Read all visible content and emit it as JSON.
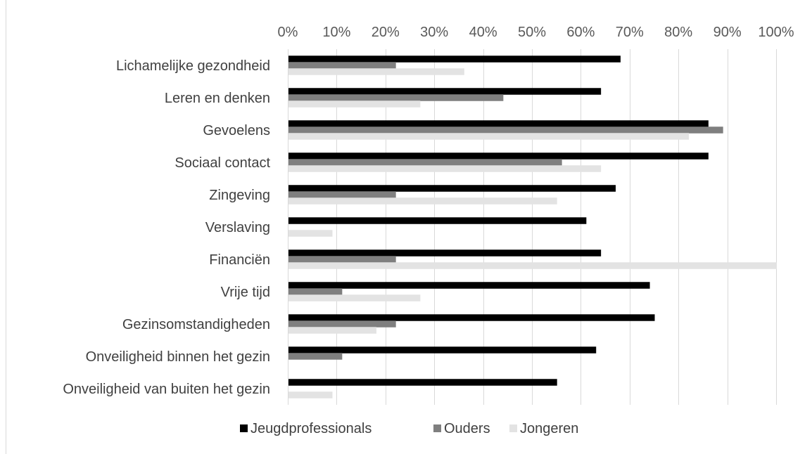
{
  "chart_data": {
    "type": "bar",
    "orientation": "horizontal",
    "categories": [
      "Lichamelijke gezondheid",
      "Leren en denken",
      "Gevoelens",
      "Sociaal contact",
      "Zingeving",
      "Verslaving",
      "Financiën",
      "Vrije tijd",
      "Gezinsomstandigheden",
      "Onveiligheid binnen het gezin",
      "Onveiligheid van buiten het gezin"
    ],
    "series": [
      {
        "name": "Jeugdprofessionals",
        "color": "#000000",
        "values": [
          68,
          64,
          86,
          86,
          67,
          61,
          64,
          74,
          75,
          63,
          55
        ]
      },
      {
        "name": "Ouders",
        "color": "#7f7f7f",
        "values": [
          22,
          44,
          89,
          56,
          22,
          0,
          22,
          11,
          22,
          11,
          0
        ]
      },
      {
        "name": "Jongeren",
        "color": "#e3e3e3",
        "values": [
          36,
          27,
          82,
          64,
          55,
          9,
          100,
          27,
          18,
          0,
          9
        ]
      }
    ],
    "xticks": [
      "0%",
      "10%",
      "20%",
      "30%",
      "40%",
      "50%",
      "60%",
      "70%",
      "80%",
      "90%",
      "100%"
    ],
    "xlim": [
      0,
      100
    ],
    "grid": true,
    "xaxis_position": "top",
    "legend_position": "bottom"
  }
}
